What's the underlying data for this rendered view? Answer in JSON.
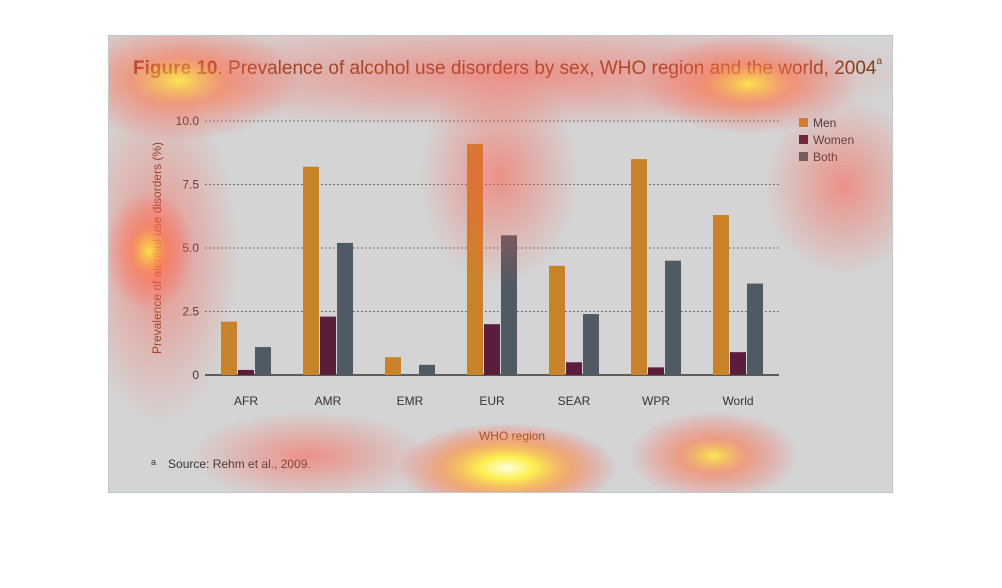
{
  "figure": {
    "label": "Figure 10",
    "title_text": ". Prevalence of alcohol use disorders by sex, WHO region and the world, 2004",
    "title_sup": "a",
    "footnote_mark": "a",
    "footnote": "Source: Rehm et al., 2009."
  },
  "colors": {
    "Men": "#c8832a",
    "Women": "#5a1e3c",
    "Both": "#505a64",
    "panel": "#d4d4d4"
  },
  "chart_data": {
    "type": "bar",
    "title": "Figure 10. Prevalence of alcohol use disorders by sex, WHO region and the world, 2004",
    "xlabel": "WHO region",
    "ylabel": "Prevalence of alcohol use disorders (%)",
    "categories": [
      "AFR",
      "AMR",
      "EMR",
      "EUR",
      "SEAR",
      "WPR",
      "World"
    ],
    "series": [
      {
        "name": "Men",
        "values": [
          2.1,
          8.2,
          0.7,
          9.1,
          4.3,
          8.5,
          6.3
        ]
      },
      {
        "name": "Women",
        "values": [
          0.2,
          2.3,
          0.0,
          2.0,
          0.5,
          0.3,
          0.9
        ]
      },
      {
        "name": "Both",
        "values": [
          1.1,
          5.2,
          0.4,
          5.5,
          2.4,
          4.5,
          3.6
        ]
      }
    ],
    "yticks": [
      "0",
      "2.5",
      "5.0",
      "7.5",
      "10.0"
    ],
    "ylim": [
      0,
      10
    ],
    "grid": "horizontal dotted",
    "legend": "top-right"
  }
}
